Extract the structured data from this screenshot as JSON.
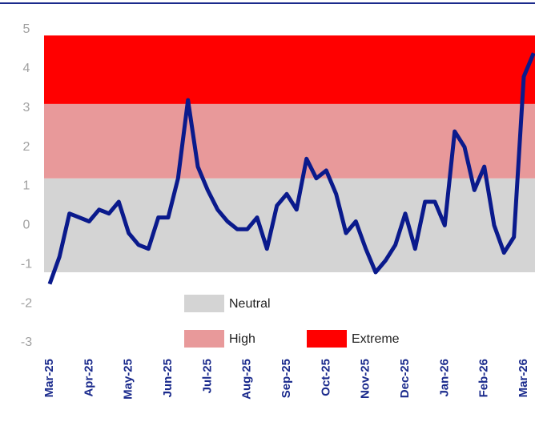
{
  "chart_data": {
    "type": "line",
    "categories": [
      "Mar-25",
      null,
      null,
      null,
      "Apr-25",
      null,
      null,
      null,
      "May-25",
      null,
      null,
      null,
      "Jun-25",
      null,
      null,
      null,
      "Jul-25",
      null,
      null,
      null,
      "Aug-25",
      null,
      null,
      null,
      "Sep-25",
      null,
      null,
      null,
      "Oct-25",
      null,
      null,
      null,
      "Nov-25",
      null,
      null,
      null,
      "Dec-25",
      null,
      null,
      null,
      "Jan-26",
      null,
      null,
      null,
      "Feb-26",
      null,
      null,
      null,
      "Mar-26",
      null
    ],
    "series": [
      {
        "color": "#0a1a8c",
        "values": [
          -1.5,
          -0.8,
          0.3,
          0.2,
          0.1,
          0.4,
          0.3,
          0.6,
          -0.2,
          -0.5,
          -0.6,
          0.2,
          0.2,
          1.2,
          3.2,
          1.5,
          0.9,
          0.4,
          0.1,
          -0.1,
          -0.1,
          0.2,
          -0.6,
          0.5,
          0.8,
          0.4,
          1.7,
          1.2,
          1.4,
          0.8,
          -0.2,
          0.1,
          -0.6,
          -1.2,
          -0.9,
          -0.5,
          0.3,
          -0.6,
          0.6,
          0.6,
          0.0,
          2.4,
          2.0,
          0.9,
          1.5,
          0.0,
          -0.7,
          -0.3,
          3.8,
          4.4
        ]
      }
    ],
    "bands": [
      {
        "name": "Neutral",
        "from": -1.2,
        "to": 1.2,
        "color": "#d4d4d4"
      },
      {
        "name": "High",
        "from": 1.2,
        "to": 3.1,
        "color": "#e8999a"
      },
      {
        "name": "Extreme",
        "from": 3.1,
        "to": 4.85,
        "color": "#ff0000"
      }
    ],
    "ylim": [
      -3,
      5
    ],
    "yticks": [
      -3,
      -2,
      -1,
      0,
      1,
      2,
      3,
      4,
      5
    ]
  }
}
